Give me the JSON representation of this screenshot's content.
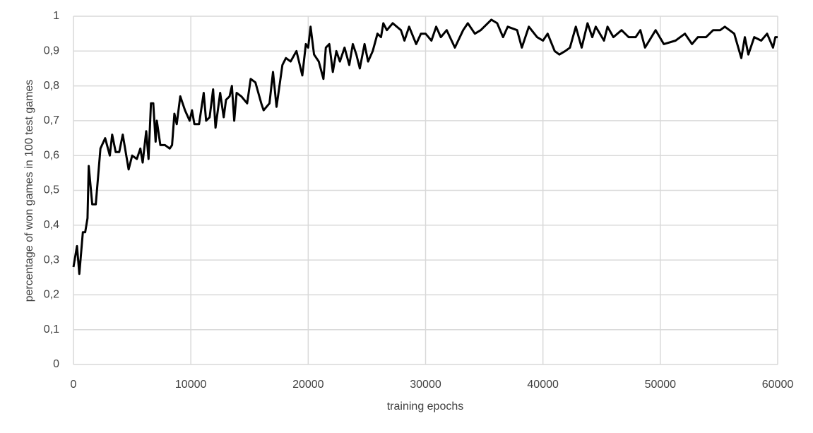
{
  "chart_data": {
    "type": "line",
    "x_label": "training epochs",
    "y_label": "percentage of won games in 100 test games",
    "x": [
      0,
      300,
      500,
      800,
      1000,
      1200,
      1300,
      1600,
      1900,
      2300,
      2700,
      3100,
      3300,
      3600,
      3900,
      4200,
      4700,
      5000,
      5400,
      5700,
      5900,
      6200,
      6400,
      6600,
      6800,
      7000,
      7100,
      7400,
      7800,
      8200,
      8400,
      8600,
      8800,
      9100,
      9500,
      9900,
      10100,
      10300,
      10700,
      11100,
      11300,
      11600,
      11900,
      12100,
      12500,
      12800,
      13000,
      13300,
      13500,
      13700,
      13900,
      14300,
      14800,
      15100,
      15500,
      16000,
      16200,
      16700,
      17000,
      17300,
      17800,
      18100,
      18500,
      19000,
      19500,
      19800,
      20000,
      20200,
      20500,
      20900,
      21300,
      21500,
      21800,
      22100,
      22400,
      22700,
      23100,
      23500,
      23800,
      24100,
      24400,
      24800,
      25100,
      25500,
      25900,
      26200,
      26400,
      26700,
      27200,
      27900,
      28200,
      28600,
      29200,
      29600,
      30000,
      30500,
      30900,
      31300,
      31800,
      32500,
      33200,
      33600,
      34200,
      34700,
      35600,
      36100,
      36600,
      37000,
      37800,
      38200,
      38800,
      39500,
      40000,
      40400,
      41000,
      41400,
      41900,
      42300,
      42800,
      43300,
      43800,
      44200,
      44500,
      45200,
      45500,
      46000,
      46700,
      47300,
      47900,
      48300,
      48700,
      49600,
      50300,
      51300,
      52100,
      52700,
      53200,
      53900,
      54500,
      55100,
      55500,
      56300,
      56900,
      57200,
      57500,
      58000,
      58600,
      59100,
      59600,
      59800,
      60000
    ],
    "series": [
      {
        "name": "won games",
        "color": "#000000",
        "values": [
          0.28,
          0.34,
          0.26,
          0.38,
          0.38,
          0.42,
          0.57,
          0.46,
          0.46,
          0.62,
          0.65,
          0.6,
          0.66,
          0.61,
          0.61,
          0.66,
          0.56,
          0.6,
          0.59,
          0.62,
          0.58,
          0.67,
          0.59,
          0.75,
          0.75,
          0.64,
          0.7,
          0.63,
          0.63,
          0.62,
          0.63,
          0.72,
          0.69,
          0.77,
          0.73,
          0.7,
          0.73,
          0.69,
          0.69,
          0.78,
          0.7,
          0.71,
          0.79,
          0.68,
          0.78,
          0.71,
          0.76,
          0.77,
          0.8,
          0.7,
          0.78,
          0.77,
          0.75,
          0.82,
          0.81,
          0.75,
          0.73,
          0.75,
          0.84,
          0.74,
          0.86,
          0.88,
          0.87,
          0.9,
          0.83,
          0.92,
          0.91,
          0.97,
          0.89,
          0.87,
          0.82,
          0.91,
          0.92,
          0.84,
          0.9,
          0.87,
          0.91,
          0.86,
          0.92,
          0.89,
          0.85,
          0.92,
          0.87,
          0.9,
          0.95,
          0.94,
          0.98,
          0.96,
          0.98,
          0.96,
          0.93,
          0.97,
          0.92,
          0.95,
          0.95,
          0.93,
          0.97,
          0.94,
          0.96,
          0.91,
          0.96,
          0.98,
          0.95,
          0.96,
          0.99,
          0.98,
          0.94,
          0.97,
          0.96,
          0.91,
          0.97,
          0.94,
          0.93,
          0.95,
          0.9,
          0.89,
          0.9,
          0.91,
          0.97,
          0.91,
          0.98,
          0.94,
          0.97,
          0.93,
          0.97,
          0.94,
          0.96,
          0.94,
          0.94,
          0.96,
          0.91,
          0.96,
          0.92,
          0.93,
          0.95,
          0.92,
          0.94,
          0.94,
          0.96,
          0.96,
          0.97,
          0.95,
          0.88,
          0.94,
          0.89,
          0.94,
          0.93,
          0.95,
          0.91,
          0.94,
          0.94
        ]
      }
    ],
    "xlim": [
      0,
      60000
    ],
    "xticks": [
      0,
      10000,
      20000,
      30000,
      40000,
      50000,
      60000
    ],
    "ylim": [
      0,
      1
    ],
    "yticks": [
      0,
      {
        "value": 0.1,
        "label": "0,1"
      },
      {
        "value": 0.2,
        "label": "0,2"
      },
      {
        "value": 0.3,
        "label": "0,3"
      },
      {
        "value": 0.4,
        "label": "0,4"
      },
      {
        "value": 0.5,
        "label": "0,5"
      },
      {
        "value": 0.6,
        "label": "0,6"
      },
      {
        "value": 0.7,
        "label": "0,7"
      },
      {
        "value": 0.8,
        "label": "0,8"
      },
      {
        "value": 0.9,
        "label": "0,9"
      },
      1
    ],
    "grid": true
  }
}
